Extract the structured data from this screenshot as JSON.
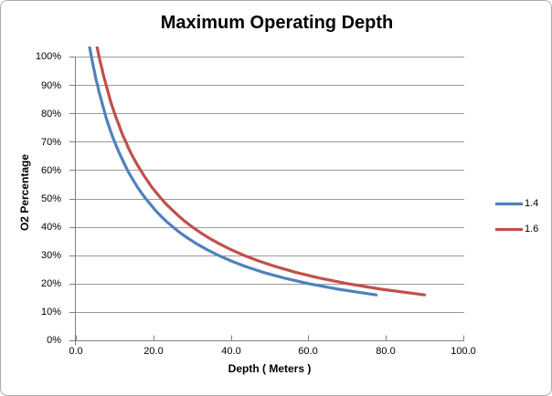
{
  "chart_data": {
    "type": "line",
    "title": "Maximum Operating Depth",
    "xlabel": "Depth ( Meters )",
    "ylabel": "O2 Percentage",
    "xlim": [
      0,
      100
    ],
    "ylim": [
      0,
      100
    ],
    "x_tick_values": [
      0,
      20,
      40,
      60,
      80,
      100
    ],
    "x_tick_labels": [
      "0.0",
      "20.0",
      "40.0",
      "60.0",
      "80.0",
      "100.0"
    ],
    "y_tick_values": [
      0,
      10,
      20,
      30,
      40,
      50,
      60,
      70,
      80,
      90,
      100
    ],
    "y_tick_labels": [
      "0%",
      "10%",
      "20%",
      "30%",
      "40%",
      "50%",
      "60%",
      "70%",
      "80%",
      "90%",
      "100%"
    ],
    "grid": "horizontal",
    "legend_position": "right",
    "colors": {
      "gridline": "#9A9A9A",
      "axis": "#808080",
      "chart_border": "#ABABAB",
      "text": "#000000"
    },
    "series": [
      {
        "name": "1.4",
        "color": "#4F81BD",
        "points": [
          [
            3.0,
            107.7
          ],
          [
            3.6,
            102.9
          ],
          [
            4.0,
            100
          ],
          [
            4.3,
            98
          ],
          [
            4.6,
            96
          ],
          [
            4.9,
            94
          ],
          [
            5.2,
            92
          ],
          [
            5.6,
            90
          ],
          [
            5.9,
            88
          ],
          [
            6.3,
            86
          ],
          [
            6.7,
            84
          ],
          [
            7.1,
            82
          ],
          [
            7.5,
            80
          ],
          [
            7.9,
            78
          ],
          [
            8.4,
            76
          ],
          [
            8.9,
            74
          ],
          [
            9.4,
            72
          ],
          [
            10.0,
            70
          ],
          [
            10.6,
            68
          ],
          [
            11.2,
            66
          ],
          [
            11.9,
            64
          ],
          [
            12.6,
            62
          ],
          [
            13.3,
            60
          ],
          [
            14.1,
            58
          ],
          [
            15.0,
            56
          ],
          [
            15.9,
            54
          ],
          [
            16.9,
            52
          ],
          [
            18.0,
            50
          ],
          [
            19.2,
            48
          ],
          [
            20.4,
            46
          ],
          [
            21.8,
            44
          ],
          [
            23.3,
            42
          ],
          [
            25.0,
            40
          ],
          [
            26.8,
            38
          ],
          [
            28.9,
            36
          ],
          [
            31.2,
            34
          ],
          [
            33.8,
            32
          ],
          [
            36.7,
            30
          ],
          [
            40.0,
            28
          ],
          [
            43.8,
            26
          ],
          [
            48.3,
            24
          ],
          [
            53.6,
            22
          ],
          [
            60.0,
            20
          ],
          [
            67.8,
            18
          ],
          [
            77.5,
            16
          ]
        ]
      },
      {
        "name": "1.6",
        "color": "#C0504D",
        "points": [
          [
            4.6,
            109.6
          ],
          [
            5.4,
            103.9
          ],
          [
            6.0,
            100
          ],
          [
            6.3,
            98
          ],
          [
            6.7,
            96
          ],
          [
            7.0,
            94
          ],
          [
            7.4,
            92
          ],
          [
            7.8,
            90
          ],
          [
            8.2,
            88
          ],
          [
            8.6,
            86
          ],
          [
            9.0,
            84
          ],
          [
            9.5,
            82
          ],
          [
            10.0,
            80
          ],
          [
            10.5,
            78
          ],
          [
            11.1,
            76
          ],
          [
            11.6,
            74
          ],
          [
            12.2,
            72
          ],
          [
            12.9,
            70
          ],
          [
            13.5,
            68
          ],
          [
            14.2,
            66
          ],
          [
            15.0,
            64
          ],
          [
            15.8,
            62
          ],
          [
            16.7,
            60
          ],
          [
            17.6,
            58
          ],
          [
            18.6,
            56
          ],
          [
            19.6,
            54
          ],
          [
            20.8,
            52
          ],
          [
            22.0,
            50
          ],
          [
            23.3,
            48
          ],
          [
            24.8,
            46
          ],
          [
            26.4,
            44
          ],
          [
            28.1,
            42
          ],
          [
            30.0,
            40
          ],
          [
            32.1,
            38
          ],
          [
            34.4,
            36
          ],
          [
            37.1,
            34
          ],
          [
            40.0,
            32
          ],
          [
            43.3,
            30
          ],
          [
            47.1,
            28
          ],
          [
            51.5,
            26
          ],
          [
            56.7,
            24
          ],
          [
            62.7,
            22
          ],
          [
            70.0,
            20
          ],
          [
            78.9,
            18
          ],
          [
            90.0,
            16
          ]
        ]
      }
    ]
  }
}
